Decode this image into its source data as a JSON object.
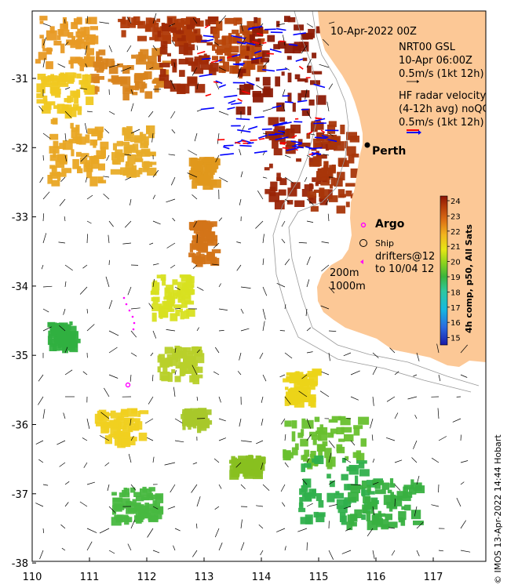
{
  "map": {
    "date_label": "10-Apr-2022 00Z",
    "gsl_block": [
      "NRT00 GSL",
      "10-Apr 06:00Z",
      "0.5m/s (1kt 12h)"
    ],
    "hf_block": [
      "HF radar velocity",
      "(4-12h avg) noQC",
      "0.5m/s (1kt 12h)"
    ],
    "place_perth": "Perth",
    "argo_label": "Argo",
    "ship_label": "Ship",
    "drifters_label": [
      "drifters@12",
      "to 10/04 12"
    ],
    "isobath_labels": [
      "200m",
      "1000m"
    ],
    "x_ticks": [
      "110",
      "111",
      "112",
      "113",
      "114",
      "115",
      "116",
      "117"
    ],
    "y_ticks": [
      "-31",
      "-32",
      "-33",
      "-34",
      "-35",
      "-36",
      "-37",
      "-38"
    ],
    "colorbar_title": "4h comp, p50, All Sats",
    "colorbar_ticks": [
      "24",
      "23",
      "22",
      "21",
      "20",
      "19",
      "18",
      "17",
      "16",
      "15"
    ],
    "credit": "© IMOS 13-Apr-2022 14:44 Hobart",
    "colors": {
      "land": "#fcc896",
      "hf_radar_outgoing": "#ff0000",
      "hf_radar_incoming": "#0000ff",
      "argo_marker": "#ff00ff"
    }
  }
}
